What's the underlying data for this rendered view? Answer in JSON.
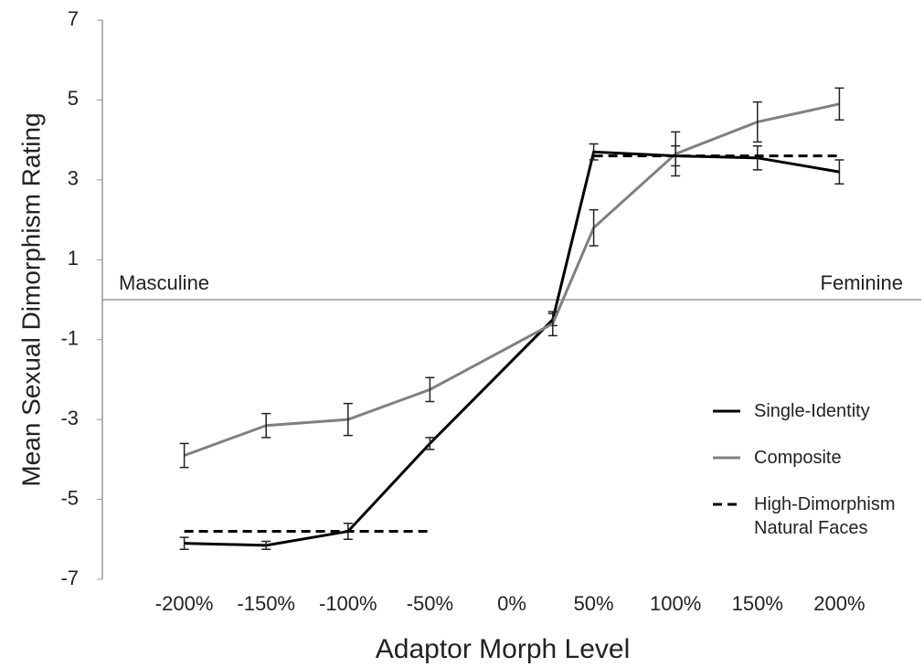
{
  "chart_data": {
    "type": "line",
    "x_label": "Adaptor Morph Level",
    "y_label": "Mean Sexual Dimorphism Rating",
    "x": [
      -200,
      -150,
      -100,
      -50,
      25,
      50,
      100,
      150,
      200
    ],
    "xlim": [
      -250,
      250
    ],
    "xticks": [
      {
        "value": -200,
        "label": "-200%"
      },
      {
        "value": -150,
        "label": "-150%"
      },
      {
        "value": -100,
        "label": "-100%"
      },
      {
        "value": -50,
        "label": "-50%"
      },
      {
        "value": 0,
        "label": "0%"
      },
      {
        "value": 50,
        "label": "50%"
      },
      {
        "value": 100,
        "label": "100%"
      },
      {
        "value": 150,
        "label": "150%"
      },
      {
        "value": 200,
        "label": "200%"
      }
    ],
    "ylim": [
      -7,
      7
    ],
    "yticks": [
      -7,
      -5,
      -3,
      -1,
      1,
      3,
      5,
      7
    ],
    "annotations": [
      "Masculine",
      "Feminine"
    ],
    "series": [
      {
        "name": "Single-Identity",
        "color": "#000000",
        "dash": false,
        "values": [
          -6.1,
          -6.15,
          -5.8,
          -3.6,
          -0.5,
          3.7,
          3.6,
          3.55,
          3.2
        ],
        "errors": [
          0.15,
          0.1,
          0.2,
          0.15,
          0.15,
          0.2,
          0.25,
          0.3,
          0.3
        ]
      },
      {
        "name": "Composite",
        "color": "#808080",
        "dash": false,
        "values": [
          -3.9,
          -3.15,
          -3.0,
          -2.25,
          -0.6,
          1.8,
          3.65,
          4.45,
          4.9
        ],
        "errors": [
          0.3,
          0.3,
          0.4,
          0.3,
          0.3,
          0.45,
          0.55,
          0.5,
          0.4
        ]
      },
      {
        "name": "High-Dimorphism Natural Faces",
        "color": "#000000",
        "dash": true,
        "values": [
          -5.8,
          -5.8,
          -5.8,
          -5.8,
          null,
          3.6,
          3.6,
          3.6,
          3.6
        ]
      }
    ]
  }
}
